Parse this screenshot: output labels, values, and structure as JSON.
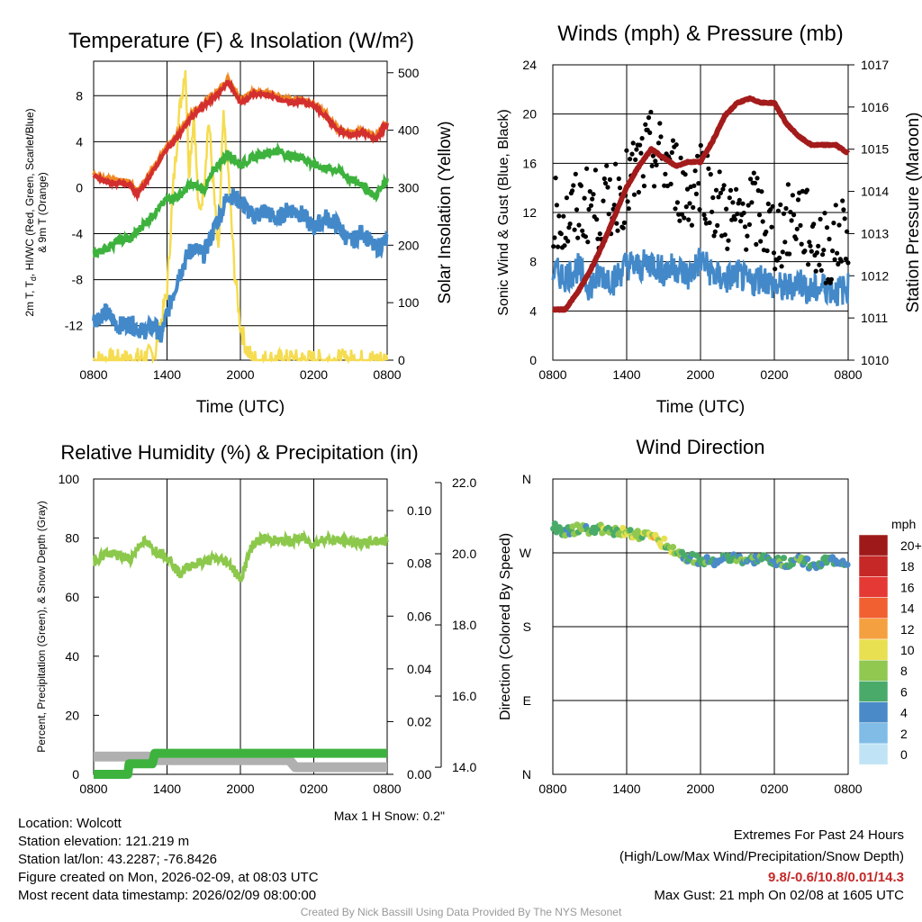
{
  "colors": {
    "red": "#d32f2f",
    "green": "#3db23d",
    "blue": "#4389c9",
    "orange": "#f08a24",
    "yellow": "#f5dc50",
    "black": "#000000",
    "maroon": "#a31b1b",
    "gray": "#b0b0b0"
  },
  "chart_data": [
    {
      "type": "line",
      "title": "Temperature (F) & Insolation (W/m²)",
      "xlabel": "Time (UTC)",
      "ylabel": "2m T, Td, HI/WC (Red, Green, Scarlet/Blue) & 9m T (Orange)",
      "ylabel_line1": "2m T, T",
      "ylabel_sub": "d",
      "ylabel_line1b": ",  HI/WC (Red, Green, Scarlet/Blue)",
      "ylabel_line2": "& 9m T (Orange)",
      "y2label": "Solar Insolation (Yellow)",
      "xticks": [
        "0800",
        "1400",
        "2000",
        "0200",
        "0800"
      ],
      "xlim": [
        0,
        24
      ],
      "ylim": [
        -15,
        11
      ],
      "yticks": [
        -12,
        -8,
        -4,
        0,
        4,
        8
      ],
      "y2lim": [
        0,
        520
      ],
      "y2ticks": [
        0,
        100,
        200,
        300,
        400,
        500
      ],
      "series": [
        {
          "name": "9m T",
          "color": "orange",
          "axis": "left",
          "x": [
            0,
            1,
            2,
            3,
            3.5,
            4,
            5,
            6,
            7,
            8,
            9,
            10,
            11,
            12,
            13,
            14,
            15,
            16,
            17,
            18,
            19,
            20,
            21,
            22,
            23,
            24
          ],
          "y": [
            1.2,
            0.7,
            0.6,
            0.5,
            -0.4,
            0.2,
            1.9,
            3.6,
            4.8,
            6.4,
            7.3,
            8.2,
            9.4,
            7.6,
            8.3,
            8.3,
            8.0,
            7.6,
            7.7,
            7.3,
            6.4,
            5.1,
            4.8,
            5.0,
            4.4,
            5.7
          ]
        },
        {
          "name": "2m T",
          "color": "red",
          "axis": "left",
          "x": [
            0,
            1,
            2,
            3,
            3.5,
            4,
            5,
            6,
            7,
            8,
            9,
            10,
            11,
            12,
            13,
            14,
            15,
            16,
            17,
            18,
            19,
            20,
            21,
            22,
            23,
            24
          ],
          "y": [
            1.0,
            0.5,
            0.4,
            0.3,
            -0.6,
            0.0,
            1.7,
            3.4,
            4.6,
            6.2,
            7.1,
            8.0,
            9.2,
            7.4,
            8.1,
            8.1,
            7.8,
            7.4,
            7.5,
            7.1,
            6.2,
            4.9,
            4.6,
            4.8,
            4.2,
            5.5
          ]
        },
        {
          "name": "HI/WC",
          "color": "blue",
          "axis": "left",
          "x": [
            0,
            1,
            2,
            3,
            4,
            5,
            5.5,
            6,
            7,
            8,
            9,
            10,
            10.5,
            11,
            12,
            13,
            14,
            15,
            16,
            17,
            18,
            19,
            20,
            21,
            22,
            23,
            24
          ],
          "y": [
            -11.5,
            -10.8,
            -12.0,
            -11.8,
            -12.5,
            -12.0,
            -13.0,
            -11.0,
            -7.5,
            -5.2,
            -5.8,
            -3.2,
            -2.0,
            -0.5,
            -1.2,
            -2.5,
            -2.0,
            -2.8,
            -1.8,
            -2.3,
            -3.5,
            -2.6,
            -3.3,
            -4.8,
            -3.8,
            -5.3,
            -4.6
          ]
        },
        {
          "name": "2m Td",
          "color": "green",
          "axis": "left",
          "x": [
            0,
            1,
            2,
            3,
            4,
            5,
            6,
            7,
            8,
            9,
            10,
            11,
            12,
            13,
            14,
            15,
            16,
            17,
            18,
            19,
            20,
            21,
            22,
            23,
            24
          ],
          "y": [
            -5.8,
            -5.3,
            -4.6,
            -4.5,
            -3.3,
            -2.2,
            -1.0,
            -0.7,
            0.3,
            -0.2,
            1.8,
            3.0,
            2.0,
            2.6,
            3.0,
            3.2,
            2.8,
            2.7,
            2.0,
            1.7,
            1.5,
            0.7,
            0.3,
            -0.8,
            0.8
          ]
        },
        {
          "name": "Solar Insolation",
          "color": "yellow",
          "axis": "right",
          "x": [
            0,
            3,
            5,
            6,
            6.5,
            7,
            7.5,
            7.8,
            8.2,
            8.6,
            9.0,
            9.4,
            9.8,
            10.2,
            10.6,
            11,
            11.5,
            12,
            12.5,
            13,
            24
          ],
          "y": [
            0,
            0,
            10,
            120,
            300,
            430,
            510,
            330,
            430,
            250,
            300,
            420,
            300,
            180,
            420,
            330,
            160,
            60,
            20,
            0,
            0
          ]
        }
      ]
    },
    {
      "type": "line",
      "title": "Winds (mph) & Pressure (mb)",
      "xlabel": "Time (UTC)",
      "ylabel": "Sonic Wind & Gust (Blue, Black)",
      "y2label": "Station Pressure (Maroon)",
      "xticks": [
        "0800",
        "1400",
        "2000",
        "0200",
        "0800"
      ],
      "xlim": [
        0,
        24
      ],
      "ylim": [
        0,
        24
      ],
      "yticks": [
        0,
        4,
        8,
        12,
        16,
        20,
        24
      ],
      "y2lim": [
        1010,
        1017
      ],
      "y2ticks": [
        1010,
        1011,
        1012,
        1013,
        1014,
        1015,
        1016,
        1017
      ],
      "series": [
        {
          "name": "Sonic Wind",
          "color": "blue",
          "axis": "left",
          "x": [
            0,
            1,
            2,
            3,
            4,
            5,
            6,
            7,
            8,
            9,
            10,
            11,
            12,
            13,
            14,
            15,
            16,
            17,
            18,
            19,
            20,
            21,
            22,
            23,
            24
          ],
          "y": [
            7.2,
            6.8,
            7.5,
            6.0,
            7.0,
            6.5,
            7.8,
            7.5,
            8.0,
            7.2,
            7.6,
            6.8,
            8.2,
            7.0,
            6.5,
            7.0,
            6.2,
            6.8,
            6.0,
            5.8,
            6.5,
            5.5,
            6.0,
            5.6,
            5.8
          ]
        },
        {
          "name": "Gust",
          "color": "black",
          "axis": "left",
          "x": [
            0,
            1,
            2,
            3,
            4,
            5,
            6,
            7,
            8,
            9,
            10,
            11,
            12,
            13,
            14,
            15,
            16,
            17,
            18,
            19,
            20,
            21,
            22,
            23,
            24
          ],
          "y": [
            12.5,
            11.0,
            12.2,
            12.8,
            12.0,
            13.5,
            14.0,
            15.5,
            17.0,
            16.0,
            15.0,
            13.0,
            15.5,
            13.0,
            12.0,
            11.0,
            12.5,
            11.5,
            10.0,
            11.0,
            12.0,
            10.0,
            9.0,
            9.5,
            11.0
          ]
        },
        {
          "name": "Station Pressure",
          "color": "maroon",
          "axis": "right",
          "x": [
            0,
            0.5,
            1,
            2,
            3,
            4,
            5,
            6,
            7,
            8,
            9,
            10,
            11,
            12,
            13,
            14,
            15,
            16,
            17,
            18,
            19,
            20,
            21,
            22,
            23,
            24
          ],
          "y": [
            1011.2,
            1011.2,
            1011.2,
            1011.6,
            1012.1,
            1012.7,
            1013.4,
            1014.1,
            1014.6,
            1015.0,
            1014.8,
            1014.6,
            1014.7,
            1014.7,
            1015.2,
            1015.8,
            1016.1,
            1016.2,
            1016.1,
            1016.1,
            1015.6,
            1015.3,
            1015.1,
            1015.1,
            1015.1,
            1014.9
          ]
        }
      ]
    },
    {
      "type": "line",
      "title": "Relative Humidity (%) & Precipitation (in)",
      "ylabel": "Percent, Precipitation (Green), & Snow Depth (Gray)",
      "xticks": [
        "0800",
        "1400",
        "2000",
        "0200",
        "0800"
      ],
      "xlim": [
        0,
        24
      ],
      "ylim": [
        0,
        100
      ],
      "yticks": [
        0,
        20,
        40,
        60,
        80,
        100
      ],
      "precip_ylim": [
        0,
        0.112
      ],
      "precip_ticks": [
        "0.00",
        "0.02",
        "0.04",
        "0.06",
        "0.08",
        "0.10"
      ],
      "snow_ylim": [
        13.8,
        22.1
      ],
      "snow_ticks": [
        "14.0",
        "16.0",
        "18.0",
        "20.0",
        "22.0"
      ],
      "note": "Max 1 H Snow: 0.2\"",
      "series": [
        {
          "name": "Relative Humidity",
          "color": "lightgreen",
          "axis": "left",
          "x": [
            0,
            1,
            2,
            3,
            4,
            5,
            6,
            7,
            8,
            9,
            10,
            11,
            12,
            13,
            14,
            15,
            16,
            17,
            18,
            19,
            20,
            21,
            22,
            23,
            24
          ],
          "y": [
            72,
            75,
            74,
            73,
            79,
            76,
            74,
            68,
            71,
            72,
            73,
            72,
            66,
            78,
            80,
            79,
            79,
            80,
            78,
            80,
            79,
            79,
            78,
            79,
            79
          ]
        },
        {
          "name": "Precipitation",
          "color": "green",
          "axis": "precip",
          "x": [
            0,
            2.8,
            2.9,
            4.8,
            5.0,
            24
          ],
          "y": [
            0.0,
            0.0,
            0.004,
            0.004,
            0.008,
            0.008
          ]
        },
        {
          "name": "Snow Depth",
          "color": "gray",
          "axis": "snow",
          "x": [
            0,
            4.5,
            5.0,
            16.0,
            16.5,
            24
          ],
          "y": [
            14.3,
            14.3,
            14.2,
            14.2,
            14.0,
            14.0
          ]
        }
      ]
    },
    {
      "type": "scatter",
      "title": "Wind Direction",
      "ylabel": "Direction (Colored By Speed)",
      "xticks": [
        "0800",
        "1400",
        "2000",
        "0200",
        "0800"
      ],
      "xlim": [
        0,
        24
      ],
      "yticks": [
        "N",
        "E",
        "S",
        "W",
        "N"
      ],
      "ylim": [
        0,
        360
      ],
      "legend_title": "mph",
      "legend_labels": [
        "20+",
        "18",
        "16",
        "14",
        "12",
        "10",
        "8",
        "6",
        "4",
        "2",
        "0"
      ],
      "legend_colors": [
        "#9e1a1a",
        "#c62828",
        "#e53935",
        "#f06030",
        "#f5a040",
        "#e8e050",
        "#90c850",
        "#4aaa6a",
        "#4a8ac8",
        "#80bce6",
        "#c0e4f6"
      ],
      "series": [
        {
          "name": "Direction",
          "x": [
            0,
            1,
            2,
            3,
            4,
            5,
            6,
            7,
            8,
            9,
            10,
            11,
            12,
            13,
            14,
            15,
            16,
            17,
            18,
            19,
            20,
            21,
            22,
            23,
            24
          ],
          "y": [
            300,
            297,
            299,
            298,
            300,
            296,
            296,
            292,
            290,
            282,
            272,
            263,
            262,
            260,
            262,
            262,
            260,
            262,
            261,
            257,
            262,
            256,
            259,
            260,
            258
          ],
          "speed": [
            7,
            6,
            7,
            6,
            8,
            7,
            9,
            8,
            10,
            9,
            7,
            6,
            6,
            6,
            5,
            6,
            6,
            6,
            5,
            6,
            6,
            5,
            5,
            5,
            5
          ]
        }
      ]
    }
  ],
  "info": {
    "location": "Location: Wolcott",
    "elevation": "Station elevation: 121.219 m",
    "latlon": "Station lat/lon: 43.2287; -76.8426",
    "created": "Figure created on Mon, 2026-02-09, at 08:03 UTC",
    "recent": "Most recent data timestamp: 2026/02/09 08:00:00"
  },
  "extremes": {
    "title": "Extremes For Past 24 Hours",
    "subtitle": "(High/Low/Max Wind/Precipitation/Snow Depth)",
    "values": "9.8/-0.6/10.8/0.01/14.3",
    "gust": "Max Gust: 21 mph On 02/08 at 1605 UTC"
  },
  "credit": "Created By Nick Bassill Using Data Provided By The NYS Mesonet"
}
